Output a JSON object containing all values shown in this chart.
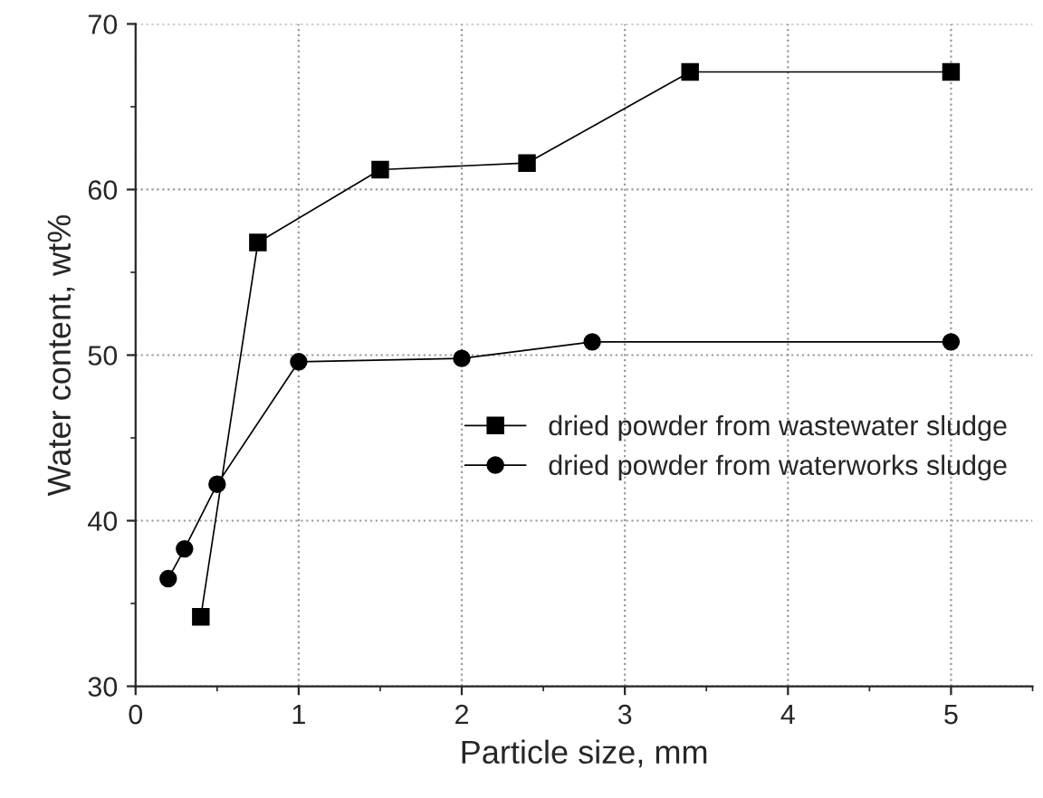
{
  "chart_data": {
    "type": "line",
    "xlabel": "Particle size, mm",
    "ylabel": "Water content, wt%",
    "xlim": [
      0,
      5.5
    ],
    "xticks": [
      0,
      1,
      2,
      3,
      4,
      5
    ],
    "ylim": [
      30,
      70
    ],
    "yticks": [
      30,
      40,
      50,
      60,
      70
    ],
    "grid": true,
    "legend": "right",
    "line_style": "solid",
    "series": [
      {
        "name": "dried powder from wastewater sludge",
        "color": "#000000",
        "marker": "square",
        "x": [
          0.4,
          0.75,
          1.5,
          2.4,
          3.4,
          5
        ],
        "values": [
          34.2,
          56.8,
          61.2,
          61.6,
          67.1,
          67.1
        ]
      },
      {
        "name": "dried powder from waterworks sludge",
        "color": "#000000",
        "marker": "circle",
        "x": [
          0.2,
          0.3,
          0.5,
          1.0,
          2.0,
          2.8,
          5
        ],
        "values": [
          36.5,
          38.3,
          42.2,
          49.6,
          49.8,
          50.8,
          50.8
        ]
      }
    ]
  }
}
